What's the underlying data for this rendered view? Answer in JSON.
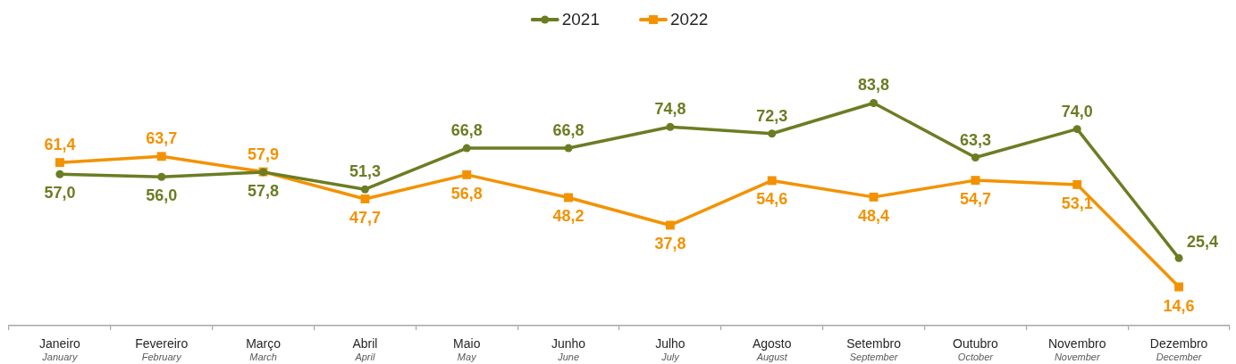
{
  "chart_data": {
    "type": "line",
    "legend": "top",
    "tick_labels": "x",
    "categories": [
      "Janeiro\nJanuary",
      "Fevereiro\nFebruary",
      "Março\nMarch",
      "Abril\nApril",
      "Maio\nMay",
      "Junho\nJune",
      "Julho\nJuly",
      "Agosto\nAugust",
      "Setembro\nSeptember",
      "Outubro\nOctober",
      "Novembro\nNovember",
      "Dezembro\nDecember"
    ],
    "series": [
      {
        "name": "2021",
        "color": "#6b7d23",
        "marker": "circle",
        "values": [
          57.0,
          56.0,
          57.8,
          51.3,
          66.8,
          66.8,
          74.8,
          72.3,
          83.8,
          63.3,
          74.0,
          25.4
        ],
        "value_labels": [
          "57,0",
          "56,0",
          "57,8",
          "51,3",
          "66,8",
          "66,8",
          "74,8",
          "72,3",
          "83,8",
          "63,3",
          "74,0",
          "25,4"
        ]
      },
      {
        "name": "2022",
        "color": "#f39200",
        "marker": "square",
        "values": [
          61.4,
          63.7,
          57.9,
          47.7,
          56.8,
          48.2,
          37.8,
          54.6,
          48.4,
          54.7,
          53.1,
          14.6
        ],
        "value_labels": [
          "61,4",
          "63,7",
          "57,9",
          "47,7",
          "56,8",
          "48,2",
          "37,8",
          "54,6",
          "48,4",
          "54,7",
          "53,1",
          "14,6"
        ]
      }
    ]
  }
}
